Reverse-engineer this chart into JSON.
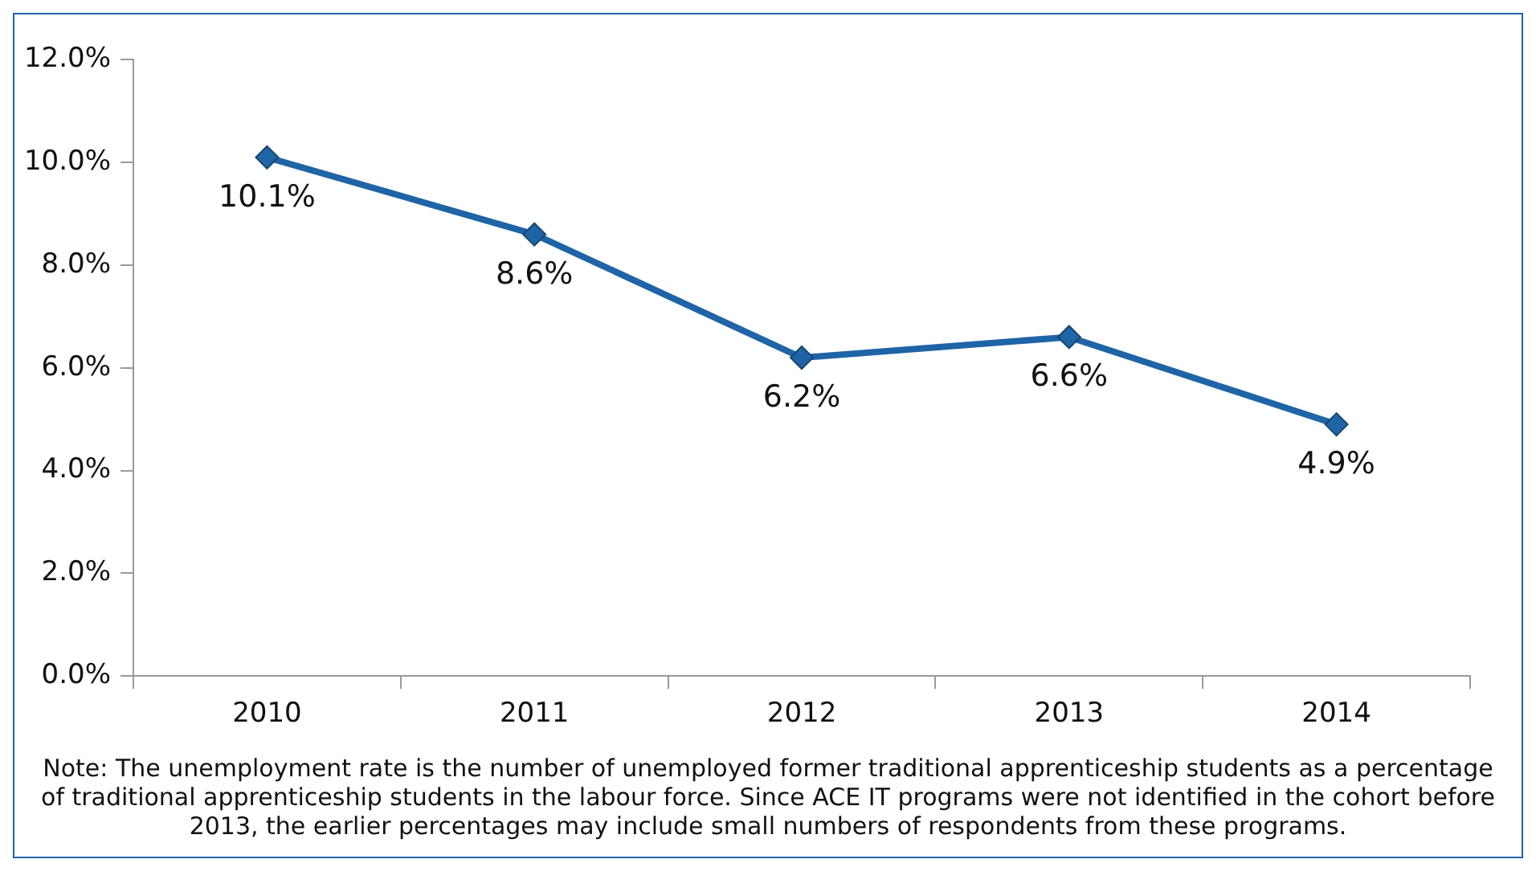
{
  "chart_data": {
    "type": "line",
    "categories": [
      "2010",
      "2011",
      "2012",
      "2013",
      "2014"
    ],
    "series": [
      {
        "color": "#1f64a6",
        "values": [
          10.1,
          8.6,
          6.2,
          6.6,
          4.9
        ],
        "value_labels": [
          "10.1%",
          "8.6%",
          "6.2%",
          "6.6%",
          "4.9%"
        ]
      }
    ],
    "ylim": [
      0,
      12
    ],
    "yticks": [
      {
        "value": 0,
        "label": "0.0%"
      },
      {
        "value": 2,
        "label": "2.0%"
      },
      {
        "value": 4,
        "label": "4.0%"
      },
      {
        "value": 6,
        "label": "6.0%"
      },
      {
        "value": 8,
        "label": "8.0%"
      },
      {
        "value": 10,
        "label": "10.0%"
      },
      {
        "value": 12,
        "label": "12.0%"
      }
    ],
    "grid": false,
    "legend": false,
    "marker": "diamond",
    "line_style": "solid",
    "annotations": [
      "Note: The unemployment rate is the number of unemployed former traditional apprenticeship students as a percentage of traditional apprenticeship students in the labour force. Since ACE IT programs were not identified in the cohort before 2013, the earlier percentages may include small numbers of respondents from these programs."
    ]
  }
}
